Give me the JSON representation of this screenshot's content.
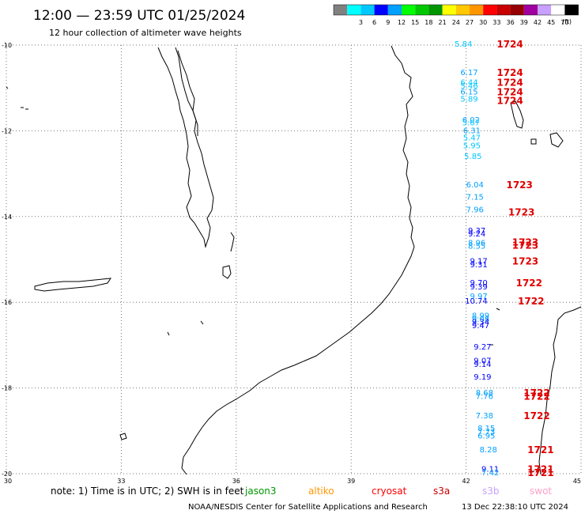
{
  "header": {
    "title": "12:00 — 23:59 UTC 01/25/2024",
    "subtitle": "12 hour collection of altimeter wave heights"
  },
  "legend": {
    "unit": "(ft)",
    "swatches": [
      {
        "color": "#808080",
        "label": ""
      },
      {
        "color": "#00ffff",
        "label": "3"
      },
      {
        "color": "#00c8ff",
        "label": "6"
      },
      {
        "color": "#0000ff",
        "label": "9"
      },
      {
        "color": "#00a0ff",
        "label": "12"
      },
      {
        "color": "#00ff00",
        "label": "15"
      },
      {
        "color": "#00c800",
        "label": "18"
      },
      {
        "color": "#009600",
        "label": "21"
      },
      {
        "color": "#ffff00",
        "label": "24"
      },
      {
        "color": "#ffc800",
        "label": "27"
      },
      {
        "color": "#ff9600",
        "label": "30"
      },
      {
        "color": "#ff0000",
        "label": "33"
      },
      {
        "color": "#c80000",
        "label": "36"
      },
      {
        "color": "#960000",
        "label": "39"
      },
      {
        "color": "#a000a0",
        "label": "42"
      },
      {
        "color": "#c8a0ff",
        "label": "45"
      },
      {
        "color": "#ffffff",
        "label": "70"
      },
      {
        "color": "#000000",
        "label": ""
      }
    ]
  },
  "map": {
    "lon_range": [
      30,
      45
    ],
    "lat_range": [
      -20,
      -10
    ],
    "lon_ticks": [
      "30",
      "33",
      "36",
      "39",
      "42",
      "45"
    ],
    "lat_ticks": [
      "-10",
      "-12",
      "-14",
      "-16",
      "-18",
      "-20"
    ],
    "grid": true
  },
  "track": {
    "swh": [
      {
        "lon": 41.7,
        "lat": -9.98,
        "value": "5.84",
        "color": "#00c8ff"
      },
      {
        "lon": 41.85,
        "lat": -10.65,
        "value": "6.17",
        "color": "#00a0ff"
      },
      {
        "lon": 41.85,
        "lat": -10.88,
        "value": "6.44",
        "color": "#00c8ff"
      },
      {
        "lon": 41.85,
        "lat": -10.96,
        "value": "5.46",
        "color": "#00c8ff"
      },
      {
        "lon": 41.85,
        "lat": -11.1,
        "value": "6.15",
        "color": "#00a0ff"
      },
      {
        "lon": 41.85,
        "lat": -11.26,
        "value": "5.89",
        "color": "#00c8ff"
      },
      {
        "lon": 41.9,
        "lat": -11.75,
        "value": "6.02",
        "color": "#00a0ff"
      },
      {
        "lon": 41.9,
        "lat": -11.82,
        "value": "5.67",
        "color": "#00c8ff"
      },
      {
        "lon": 41.92,
        "lat": -12.0,
        "value": "6.31",
        "color": "#00a0ff"
      },
      {
        "lon": 41.92,
        "lat": -12.17,
        "value": "5.47",
        "color": "#00c8ff"
      },
      {
        "lon": 41.92,
        "lat": -12.35,
        "value": "5.95",
        "color": "#00c8ff"
      },
      {
        "lon": 41.95,
        "lat": -12.6,
        "value": "5.85",
        "color": "#00c8ff"
      },
      {
        "lon": 42.0,
        "lat": -13.27,
        "value": "6.04",
        "color": "#00a0ff"
      },
      {
        "lon": 42.0,
        "lat": -13.55,
        "value": "7.15",
        "color": "#00a0ff"
      },
      {
        "lon": 42.0,
        "lat": -13.85,
        "value": "7.96",
        "color": "#00a0ff"
      },
      {
        "lon": 42.05,
        "lat": -14.34,
        "value": "9.37",
        "color": "#0000ff"
      },
      {
        "lon": 42.05,
        "lat": -14.41,
        "value": "9.24",
        "color": "#0000ff"
      },
      {
        "lon": 42.05,
        "lat": -14.62,
        "value": "8.96",
        "color": "#00a0ff"
      },
      {
        "lon": 42.05,
        "lat": -14.7,
        "value": "8.55",
        "color": "#00a0ff"
      },
      {
        "lon": 42.1,
        "lat": -15.05,
        "value": "9.17",
        "color": "#0000ff"
      },
      {
        "lon": 42.1,
        "lat": -15.13,
        "value": "9.31",
        "color": "#0000ff"
      },
      {
        "lon": 42.1,
        "lat": -15.55,
        "value": "9.70",
        "color": "#0000ff"
      },
      {
        "lon": 42.1,
        "lat": -15.65,
        "value": "9.39",
        "color": "#0000ff"
      },
      {
        "lon": 42.1,
        "lat": -15.87,
        "value": "9.97",
        "color": "#00a0ff"
      },
      {
        "lon": 41.97,
        "lat": -15.98,
        "value": "10.74",
        "color": "#0000ff"
      },
      {
        "lon": 42.15,
        "lat": -16.32,
        "value": "8.99",
        "color": "#00a0ff"
      },
      {
        "lon": 42.15,
        "lat": -16.4,
        "value": "9.08",
        "color": "#00a0ff"
      },
      {
        "lon": 42.15,
        "lat": -16.47,
        "value": "9.34",
        "color": "#0000ff"
      },
      {
        "lon": 42.15,
        "lat": -16.55,
        "value": "9.47",
        "color": "#0000ff"
      },
      {
        "lon": 42.2,
        "lat": -17.05,
        "value": "9.27",
        "color": "#0000ff"
      },
      {
        "lon": 42.2,
        "lat": -17.37,
        "value": "9.07",
        "color": "#0000ff"
      },
      {
        "lon": 42.2,
        "lat": -17.45,
        "value": "9.14",
        "color": "#0000ff"
      },
      {
        "lon": 42.2,
        "lat": -17.75,
        "value": "9.19",
        "color": "#0000ff"
      },
      {
        "lon": 42.25,
        "lat": -18.12,
        "value": "8.68",
        "color": "#00a0ff"
      },
      {
        "lon": 42.25,
        "lat": -18.2,
        "value": "7.76",
        "color": "#00a0ff"
      },
      {
        "lon": 42.25,
        "lat": -18.65,
        "value": "7.38",
        "color": "#00a0ff"
      },
      {
        "lon": 42.3,
        "lat": -18.95,
        "value": "8.15",
        "color": "#00a0ff"
      },
      {
        "lon": 42.3,
        "lat": -19.03,
        "value": "7.73",
        "color": "#00a0ff"
      },
      {
        "lon": 42.3,
        "lat": -19.12,
        "value": "6.95",
        "color": "#00a0ff"
      },
      {
        "lon": 42.35,
        "lat": -19.45,
        "value": "8.28",
        "color": "#00a0ff"
      },
      {
        "lon": 42.4,
        "lat": -19.9,
        "value": "9.11",
        "color": "#0000ff"
      },
      {
        "lon": 42.4,
        "lat": -19.98,
        "value": "7.42",
        "color": "#00a0ff"
      }
    ],
    "cycles": [
      {
        "lon": 42.8,
        "lat": -9.98,
        "value": "1724"
      },
      {
        "lon": 42.8,
        "lat": -10.65,
        "value": "1724"
      },
      {
        "lon": 42.8,
        "lat": -10.88,
        "value": "1724"
      },
      {
        "lon": 42.8,
        "lat": -11.1,
        "value": "1724"
      },
      {
        "lon": 42.8,
        "lat": -11.3,
        "value": "1724"
      },
      {
        "lon": 43.05,
        "lat": -13.27,
        "value": "1723"
      },
      {
        "lon": 43.1,
        "lat": -13.9,
        "value": "1723"
      },
      {
        "lon": 43.2,
        "lat": -14.6,
        "value": "1723"
      },
      {
        "lon": 43.2,
        "lat": -14.68,
        "value": "1723"
      },
      {
        "lon": 43.2,
        "lat": -15.05,
        "value": "1723"
      },
      {
        "lon": 43.3,
        "lat": -15.55,
        "value": "1722"
      },
      {
        "lon": 43.35,
        "lat": -15.98,
        "value": "1722"
      },
      {
        "lon": 43.5,
        "lat": -18.12,
        "value": "1722"
      },
      {
        "lon": 43.5,
        "lat": -18.2,
        "value": "1722"
      },
      {
        "lon": 43.5,
        "lat": -18.65,
        "value": "1722"
      },
      {
        "lon": 43.6,
        "lat": -19.45,
        "value": "1721"
      },
      {
        "lon": 43.6,
        "lat": -19.9,
        "value": "1721"
      },
      {
        "lon": 43.6,
        "lat": -19.98,
        "value": "1721"
      }
    ]
  },
  "note": {
    "text": "note:  1) Time is in UTC; 2) SWH is in feet",
    "satellites": [
      {
        "name": "jason3",
        "color": "#009600"
      },
      {
        "name": "altiko",
        "color": "#ff9600"
      },
      {
        "name": "cryosat",
        "color": "#ff0000"
      },
      {
        "name": "s3a",
        "color": "#c80000"
      },
      {
        "name": "s3b",
        "color": "#c8a0ff"
      },
      {
        "name": "swot",
        "color": "#ffa0c8"
      }
    ]
  },
  "footer": {
    "credit": "NOAA/NESDIS Center for Satellite Applications and Research",
    "timestamp": "13 Dec 22:38:10 UTC 2024"
  }
}
